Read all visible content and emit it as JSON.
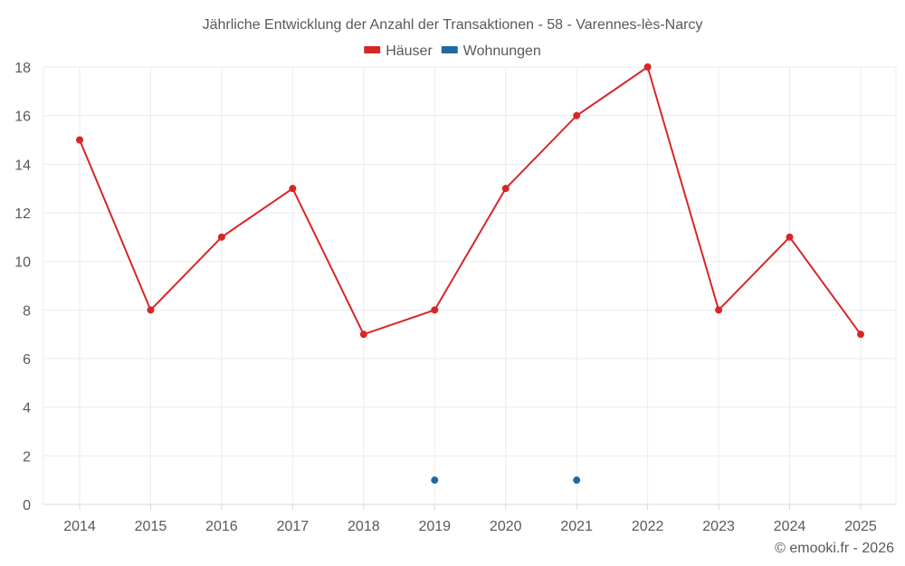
{
  "chart_data": {
    "type": "line",
    "title": "Jährliche Entwicklung der Anzahl der Transaktionen - 58 - Varennes-lès-Narcy",
    "categories": [
      "2014",
      "2015",
      "2016",
      "2017",
      "2018",
      "2019",
      "2020",
      "2021",
      "2022",
      "2023",
      "2024",
      "2025"
    ],
    "series": [
      {
        "name": "Häuser",
        "color": "#d62728",
        "values": [
          15,
          8,
          11,
          13,
          7,
          8,
          13,
          16,
          18,
          8,
          11,
          7
        ]
      },
      {
        "name": "Wohnungen",
        "color": "#1f6aa5",
        "values": [
          null,
          null,
          null,
          null,
          null,
          1,
          null,
          1,
          null,
          null,
          null,
          null
        ]
      }
    ],
    "ylim": [
      0,
      18
    ],
    "yticks": [
      0,
      2,
      4,
      6,
      8,
      10,
      12,
      14,
      16,
      18
    ],
    "grid": true,
    "legend_position": "top-center",
    "xlabel": "",
    "ylabel": ""
  },
  "footer": {
    "copyright": "© emooki.fr - 2026"
  }
}
